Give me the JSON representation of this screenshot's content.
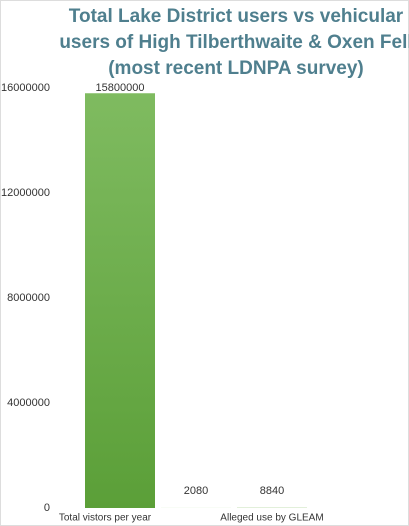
{
  "chart_data": {
    "type": "bar",
    "title": [
      "Total Lake District users vs vehicular",
      "users of High Tilberthwaite & Oxen Fell",
      "(most recent LDNPA survey)"
    ],
    "categories": [
      "Total vistors per year",
      null,
      "Alleged use by GLEAM"
    ],
    "values": [
      15800000,
      2080,
      8840
    ],
    "color": "#6aaa48",
    "ylim": [
      0,
      16000000
    ],
    "yticks": [
      0,
      4000000,
      8000000,
      12000000,
      16000000
    ],
    "grid": false
  }
}
